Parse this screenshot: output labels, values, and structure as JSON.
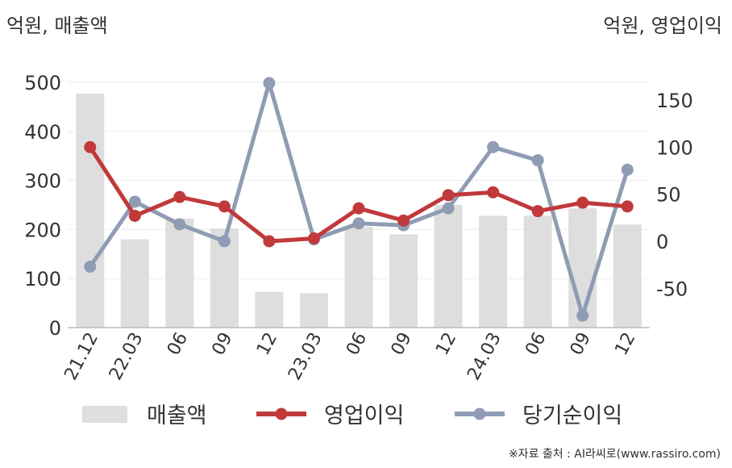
{
  "labels": {
    "unit_left": "억원, 매출액",
    "unit_right": "억원, 영업이익",
    "source": "※자료 출처 : AI라씨로(www.rassiro.com)"
  },
  "chart_data": {
    "type": "bar+line",
    "categories": [
      "21.12",
      "22.03",
      "06",
      "09",
      "12",
      "23.03",
      "06",
      "09",
      "12",
      "24.03",
      "06",
      "09",
      "12"
    ],
    "left_axis": {
      "min": 0,
      "max": 500,
      "ticks": [
        0,
        100,
        200,
        300,
        400,
        500
      ]
    },
    "right_axis": {
      "min": -90,
      "max": 175,
      "ticks": [
        -50,
        0,
        50,
        100,
        150
      ]
    },
    "grid": true,
    "legend_position": "bottom",
    "series": [
      {
        "name": "매출액",
        "type": "bar",
        "axis": "left",
        "color": "#dedede",
        "values": [
          477,
          180,
          222,
          202,
          73,
          70,
          205,
          190,
          250,
          228,
          228,
          243,
          210
        ]
      },
      {
        "name": "영업이익",
        "type": "line",
        "axis": "right",
        "color": "#c0393b",
        "values": [
          100,
          27,
          47,
          37,
          0,
          3,
          35,
          22,
          49,
          52,
          32,
          41,
          37
        ]
      },
      {
        "name": "당기순이익",
        "type": "line",
        "axis": "right",
        "color": "#8f9cb3",
        "values": [
          -27,
          42,
          18,
          0,
          168,
          2,
          19,
          17,
          35,
          100,
          86,
          -79,
          76
        ]
      }
    ]
  }
}
